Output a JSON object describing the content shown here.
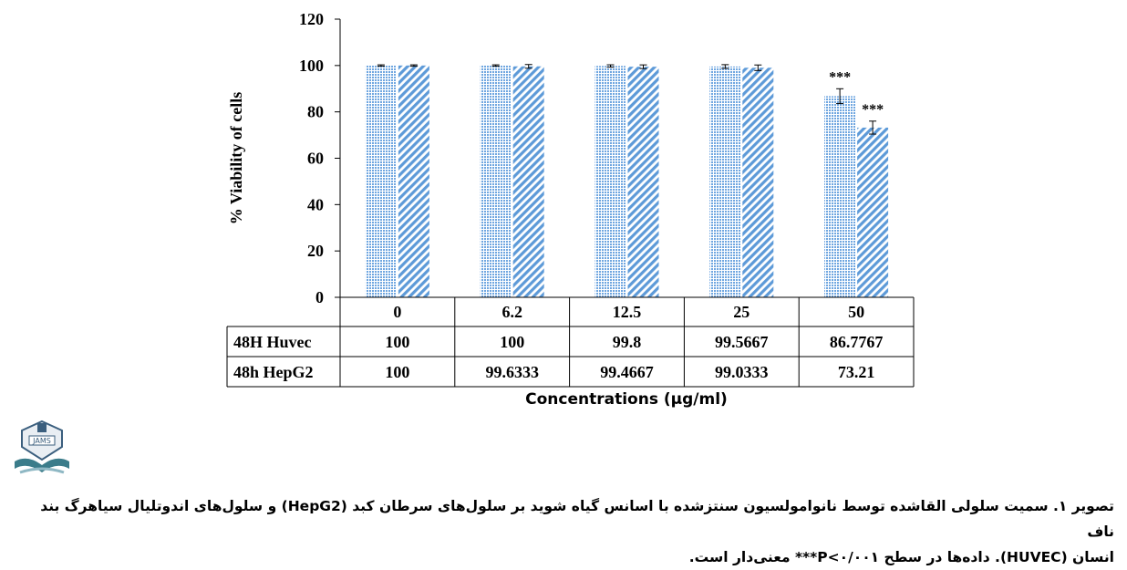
{
  "chart_data": {
    "type": "bar",
    "ylabel": "% Viability of cells",
    "xlabel": "Concentrations (µg/ml)",
    "ylim": [
      0,
      120
    ],
    "yticks": [
      "0",
      "20",
      "40",
      "60",
      "80",
      "100",
      "120"
    ],
    "categories": [
      "0",
      "6.2",
      "12.5",
      "25",
      "50"
    ],
    "series": [
      {
        "name": "48H Huvec",
        "values": [
          100,
          100,
          99.8,
          99.5667,
          86.7767
        ],
        "value_labels": [
          "100",
          "100",
          "99.8",
          "99.5667",
          "86.7767"
        ],
        "errors": [
          0.3,
          0.3,
          0.5,
          0.8,
          3.2
        ],
        "color": "#6fa6e0",
        "pattern": "dotted"
      },
      {
        "name": "48h HepG2",
        "values": [
          100,
          99.6333,
          99.4667,
          99.0333,
          73.21
        ],
        "value_labels": [
          "100",
          "99.6333",
          "99.4667",
          "99.0333",
          "73.21"
        ],
        "errors": [
          0.3,
          0.8,
          0.8,
          1.2,
          2.8
        ],
        "color": "#6fa6e0",
        "pattern": "diagonal"
      }
    ],
    "annotations": [
      {
        "series": 0,
        "category": "50",
        "text": "***"
      },
      {
        "series": 1,
        "category": "50",
        "text": "***"
      }
    ],
    "grid": false,
    "data_table": true
  },
  "logo": {
    "text": "JAMS"
  },
  "caption": {
    "label": "تصویر ۱.",
    "line1": " سمیت سلولی القاشده توسط نانوامولسیون سنتزشده با اسانس گیاه شوید بر سلول‌های سرطان کبد (HepG2) و سلول‌های اندوتلیال سیاهرگ بند ناف",
    "line2": "انسان (HUVEC). داده‌ها در سطح P<۰/۰۰۱*** معنی‌دار است."
  }
}
